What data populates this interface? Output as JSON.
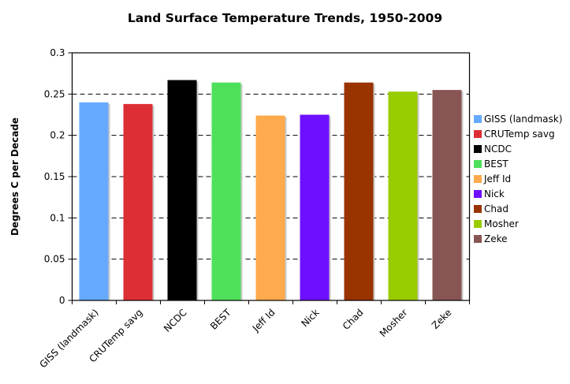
{
  "chart_data": {
    "type": "bar",
    "title": "Land Surface Temperature Trends, 1950-2009",
    "xlabel": "",
    "ylabel": "Degrees C per Decade",
    "ylim": [
      0,
      0.3
    ],
    "yticks": [
      0,
      0.05,
      0.1,
      0.15,
      0.2,
      0.25,
      0.3
    ],
    "ytick_labels": [
      "0",
      "0.05",
      "0.1",
      "0.15",
      "0.2",
      "0.25",
      "0.3"
    ],
    "grid": "horizontal dashed",
    "legend_position": "right",
    "categories": [
      "GISS (landmask)",
      "CRUTemp savg",
      "NCDC",
      "BEST",
      "Jeff Id",
      "Nick",
      "Chad",
      "Mosher",
      "Zeke"
    ],
    "values": [
      0.24,
      0.238,
      0.267,
      0.264,
      0.224,
      0.225,
      0.264,
      0.253,
      0.255
    ],
    "colors": [
      "#66aaff",
      "#dd2e35",
      "#000000",
      "#4ee05a",
      "#ffaa4c",
      "#6e10ff",
      "#993300",
      "#99cc00",
      "#885555"
    ]
  }
}
